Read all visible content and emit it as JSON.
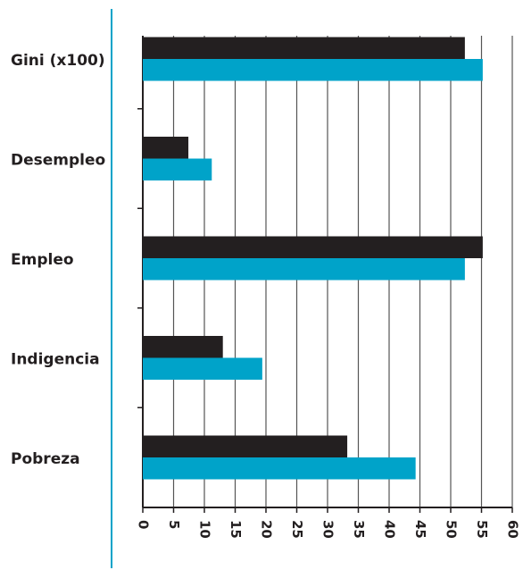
{
  "chart_data": {
    "type": "hbar",
    "categories": [
      "Gini (x100)",
      "Desempleo",
      "Empleo",
      "Indigencia",
      "Pobreza"
    ],
    "series": [
      {
        "color": "#231f20",
        "values": [
          52.3,
          7.4,
          55.2,
          13,
          33.2
        ]
      },
      {
        "color": "#00a3c9",
        "values": [
          55.2,
          11.2,
          52.3,
          19.4,
          44.3
        ]
      }
    ],
    "xlim": [
      0,
      60
    ],
    "xticks": [
      0,
      5,
      10,
      15,
      20,
      25,
      30,
      35,
      40,
      45,
      50,
      55,
      60
    ],
    "grid": true
  }
}
